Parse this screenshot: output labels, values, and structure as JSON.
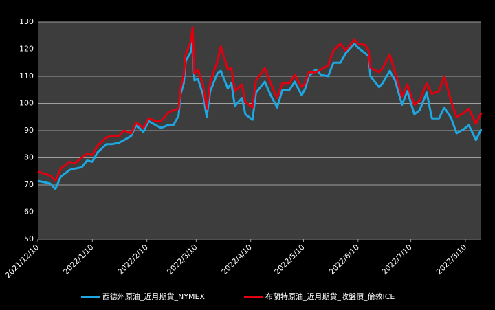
{
  "chart_data": {
    "type": "line",
    "x": [
      "2021/12/10",
      "2021/12/14",
      "2021/12/17",
      "2021/12/20",
      "2021/12/23",
      "2021/12/28",
      "2021/12/31",
      "2022/1/4",
      "2022/1/7",
      "2022/1/10",
      "2022/1/13",
      "2022/1/18",
      "2022/1/21",
      "2022/1/25",
      "2022/1/28",
      "2022/2/1",
      "2022/2/4",
      "2022/2/8",
      "2022/2/11",
      "2022/2/15",
      "2022/2/18",
      "2022/2/22",
      "2022/2/25",
      "2022/2/28",
      "2022/3/1",
      "2022/3/3",
      "2022/3/4",
      "2022/3/7",
      "2022/3/8",
      "2022/3/9",
      "2022/3/11",
      "2022/3/14",
      "2022/3/16",
      "2022/3/18",
      "2022/3/22",
      "2022/3/24",
      "2022/3/28",
      "2022/3/30",
      "2022/4/1",
      "2022/4/5",
      "2022/4/7",
      "2022/4/11",
      "2022/4/13",
      "2022/4/18",
      "2022/4/21",
      "2022/4/25",
      "2022/4/28",
      "2022/5/2",
      "2022/5/5",
      "2022/5/9",
      "2022/5/11",
      "2022/5/13",
      "2022/5/17",
      "2022/5/20",
      "2022/5/24",
      "2022/5/27",
      "2022/5/31",
      "2022/6/3",
      "2022/6/8",
      "2022/6/10",
      "2022/6/14",
      "2022/6/16",
      "2022/6/17",
      "2022/6/22",
      "2022/6/24",
      "2022/6/28",
      "2022/7/1",
      "2022/7/5",
      "2022/7/8",
      "2022/7/12",
      "2022/7/15",
      "2022/7/19",
      "2022/7/22",
      "2022/7/26",
      "2022/7/29",
      "2022/8/2",
      "2022/8/5",
      "2022/8/9",
      "2022/8/12",
      "2022/8/16",
      "2022/8/19"
    ],
    "series": [
      {
        "name": "西德州原油_近月期貨_NYMEX",
        "color": "#1ea7e0",
        "values": [
          71.5,
          71,
          70.5,
          68.5,
          73,
          75.5,
          76,
          76.5,
          79,
          78.5,
          82,
          85,
          85,
          85.5,
          86.5,
          88,
          92,
          89.5,
          93.5,
          92,
          91,
          92,
          92,
          95.5,
          103,
          107.5,
          115.5,
          119,
          123.5,
          108.5,
          109,
          103,
          95,
          104.5,
          111,
          112,
          105.5,
          107.5,
          99,
          102,
          96,
          94,
          104,
          108,
          103.5,
          98.5,
          105,
          105,
          108,
          103,
          105.5,
          110,
          112.5,
          110.5,
          110,
          115,
          115,
          118.5,
          122,
          120.5,
          118.5,
          117.5,
          110,
          106,
          107.5,
          112,
          108.5,
          99.5,
          104.5,
          96,
          97.5,
          104,
          94.5,
          94.5,
          98.5,
          94.5,
          89,
          90.5,
          92,
          86.5,
          90.5
        ]
      },
      {
        "name": "布蘭特原油_近月期貨_收盤價_倫敦ICE",
        "color": "#e0000f",
        "values": [
          75,
          74,
          73.5,
          71.5,
          76,
          78.5,
          78,
          80,
          81.5,
          81,
          84.5,
          87.5,
          88,
          88,
          90,
          89,
          93,
          91,
          94.5,
          93.5,
          93.5,
          96.5,
          97.5,
          98,
          105,
          110.5,
          118,
          123,
          128,
          111,
          112.5,
          106.5,
          98,
          108,
          115.5,
          121,
          112.5,
          113,
          104.5,
          107,
          100.5,
          98.5,
          108.5,
          113,
          108,
          102,
          107.5,
          107.5,
          110.5,
          106,
          107.5,
          111.5,
          111.5,
          112.5,
          114,
          119.5,
          122,
          119.5,
          123.5,
          122,
          121.5,
          119.5,
          113,
          111.5,
          113,
          118,
          111.5,
          102.5,
          107,
          99.5,
          101,
          107.5,
          103.5,
          104.5,
          110,
          100.5,
          95,
          96.5,
          98,
          92.5,
          96.5
        ]
      }
    ],
    "xlim": [
      "2021/12/10",
      "2022/8/19"
    ],
    "xticks": [
      "2021/12/10",
      "2022/1/10",
      "2022/2/10",
      "2022/3/10",
      "2022/4/10",
      "2022/5/10",
      "2022/6/10",
      "2022/7/10",
      "2022/8/10"
    ],
    "ylim": [
      50,
      130
    ],
    "yticks": [
      50,
      60,
      70,
      80,
      90,
      100,
      110,
      120,
      130
    ],
    "grid": true,
    "legend": "bottom"
  }
}
